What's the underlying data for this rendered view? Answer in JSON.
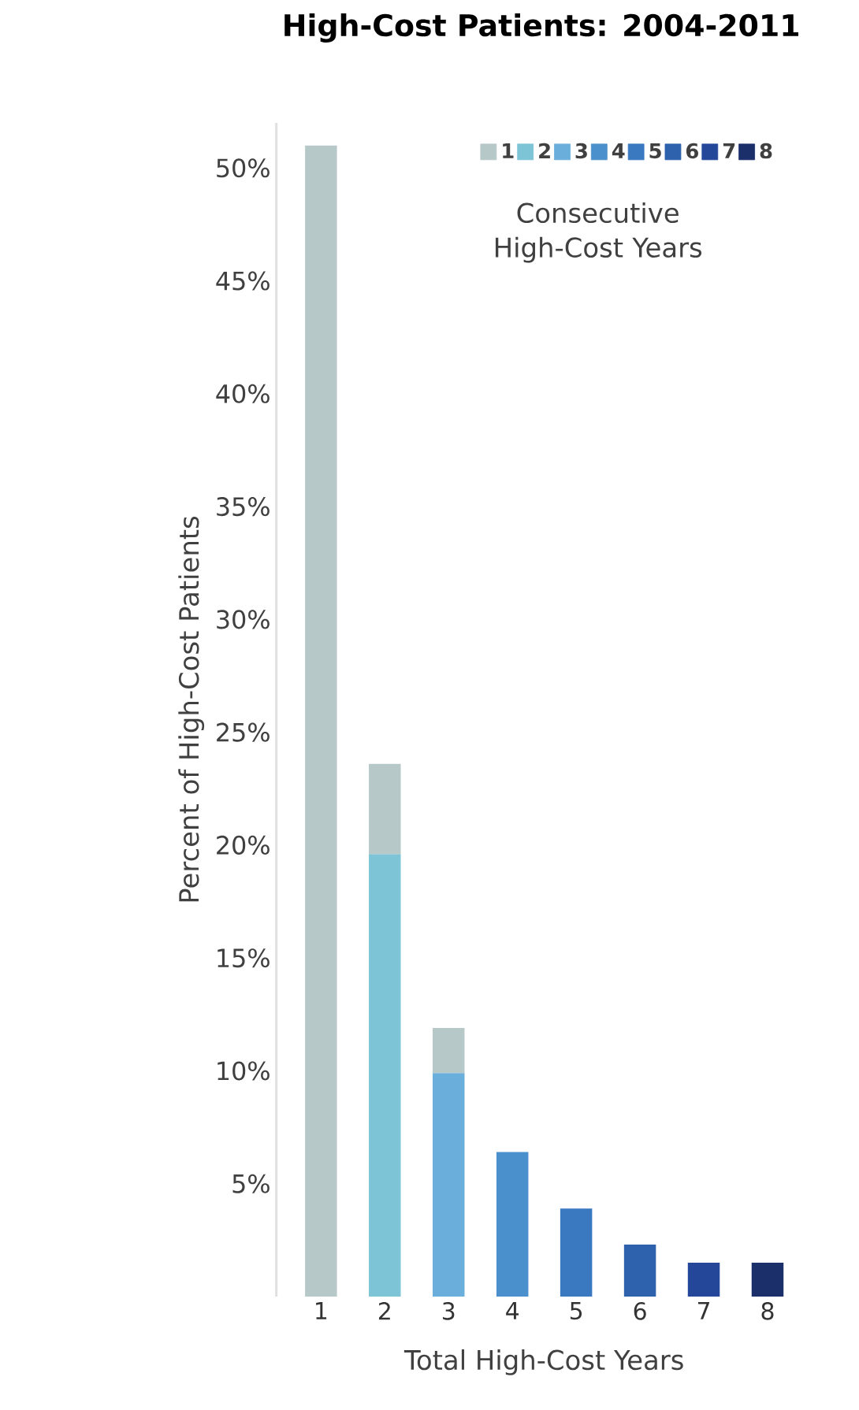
{
  "chart_data": {
    "type": "bar",
    "title": "High-Cost Patients: 2004-2011",
    "xlabel": "Total High-Cost Years",
    "ylabel": "Percent of High-Cost Patients",
    "legend_title": "Consecutive High-Cost Years",
    "legend": "top right",
    "categories": [
      "1",
      "2",
      "3",
      "4",
      "5",
      "6",
      "7",
      "8"
    ],
    "stacked": true,
    "series": [
      {
        "name": "8",
        "color": "#1b2f6b",
        "values": [
          null,
          null,
          null,
          null,
          null,
          null,
          null,
          1.5
        ]
      },
      {
        "name": "7",
        "color": "#24479a",
        "values": [
          null,
          null,
          null,
          null,
          null,
          null,
          1.5,
          null
        ]
      },
      {
        "name": "6",
        "color": "#2f62ad",
        "values": [
          null,
          null,
          null,
          null,
          null,
          2.3,
          null,
          null
        ]
      },
      {
        "name": "5",
        "color": "#3a78c0",
        "values": [
          null,
          null,
          null,
          null,
          3.9,
          null,
          null,
          null
        ]
      },
      {
        "name": "4",
        "color": "#4a90cc",
        "values": [
          null,
          null,
          null,
          6.4,
          null,
          null,
          null,
          null
        ]
      },
      {
        "name": "3",
        "color": "#6aaedc",
        "values": [
          null,
          null,
          9.9,
          null,
          null,
          null,
          null,
          null
        ]
      },
      {
        "name": "2",
        "color": "#7cc4d6",
        "values": [
          null,
          19.6,
          null,
          null,
          null,
          null,
          null,
          null
        ]
      },
      {
        "name": "1",
        "color": "#b7c8c8",
        "values": [
          51,
          4,
          2,
          null,
          null,
          null,
          null,
          null
        ]
      }
    ],
    "ylim": [
      0,
      52
    ],
    "yticks": [
      {
        "value": 5,
        "label": "5%"
      },
      {
        "value": 10,
        "label": "10%"
      },
      {
        "value": 15,
        "label": "15%"
      },
      {
        "value": 20,
        "label": "20%"
      },
      {
        "value": 25,
        "label": "25%"
      },
      {
        "value": 30,
        "label": "30%"
      },
      {
        "value": 35,
        "label": "35%"
      },
      {
        "value": 40,
        "label": "40%"
      },
      {
        "value": 45,
        "label": "45%"
      },
      {
        "value": 50,
        "label": "50%"
      }
    ]
  }
}
